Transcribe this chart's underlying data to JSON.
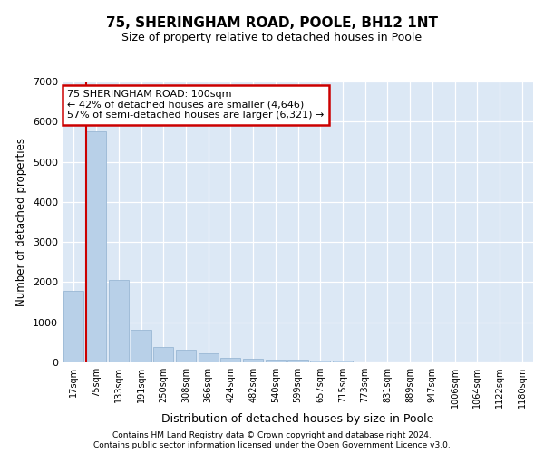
{
  "title1": "75, SHERINGHAM ROAD, POOLE, BH12 1NT",
  "title2": "Size of property relative to detached houses in Poole",
  "xlabel": "Distribution of detached houses by size in Poole",
  "ylabel": "Number of detached properties",
  "categories": [
    "17sqm",
    "75sqm",
    "133sqm",
    "191sqm",
    "250sqm",
    "308sqm",
    "366sqm",
    "424sqm",
    "482sqm",
    "540sqm",
    "599sqm",
    "657sqm",
    "715sqm",
    "773sqm",
    "831sqm",
    "889sqm",
    "947sqm",
    "1006sqm",
    "1064sqm",
    "1122sqm",
    "1180sqm"
  ],
  "values": [
    1780,
    5750,
    2060,
    810,
    380,
    320,
    220,
    120,
    80,
    75,
    70,
    55,
    50,
    0,
    0,
    0,
    0,
    0,
    0,
    0,
    0
  ],
  "bar_color": "#b8d0e8",
  "bar_edge_color": "#9ab8d4",
  "highlight_bar_index": 1,
  "highlight_line_color": "#cc0000",
  "annotation_line1": "75 SHERINGHAM ROAD: 100sqm",
  "annotation_line2": "← 42% of detached houses are smaller (4,646)",
  "annotation_line3": "57% of semi-detached houses are larger (6,321) →",
  "annotation_box_facecolor": "#ffffff",
  "annotation_box_edgecolor": "#cc0000",
  "ylim": [
    0,
    7000
  ],
  "yticks": [
    0,
    1000,
    2000,
    3000,
    4000,
    5000,
    6000,
    7000
  ],
  "bg_color": "#dce8f5",
  "grid_color": "#ffffff",
  "footer1": "Contains HM Land Registry data © Crown copyright and database right 2024.",
  "footer2": "Contains public sector information licensed under the Open Government Licence v3.0."
}
